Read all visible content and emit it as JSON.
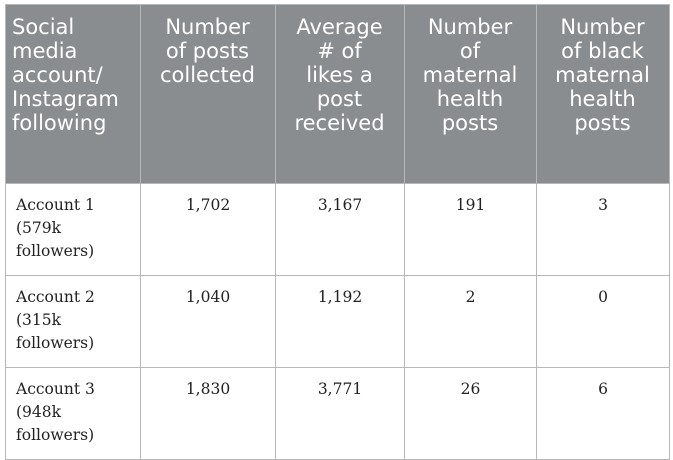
{
  "table": {
    "headers": [
      [
        "Social",
        "media",
        "account/",
        "Instagram",
        "following"
      ],
      [
        "Number",
        "of posts",
        "collected"
      ],
      [
        "Average",
        "# of",
        "likes a",
        "post",
        "received"
      ],
      [
        "Number",
        "of",
        "maternal",
        "health",
        "posts"
      ],
      [
        "Number",
        "of black",
        "maternal",
        "health",
        "posts"
      ]
    ],
    "rows": [
      {
        "account": [
          "Account 1",
          "(579k",
          "followers)"
        ],
        "posts_collected": "1,702",
        "avg_likes": "3,167",
        "maternal_posts": "191",
        "black_maternal_posts": "3"
      },
      {
        "account": [
          "Account 2",
          "(315k",
          "followers)"
        ],
        "posts_collected": "1,040",
        "avg_likes": "1,192",
        "maternal_posts": "2",
        "black_maternal_posts": "0"
      },
      {
        "account": [
          "Account 3",
          "(948k",
          "followers)"
        ],
        "posts_collected": "1,830",
        "avg_likes": "3,771",
        "maternal_posts": "26",
        "black_maternal_posts": "6"
      }
    ]
  },
  "colors": {
    "header_bg": "#8a8d8f",
    "header_text": "#ffffff",
    "border": "#b7b7b7",
    "body_text": "#222222"
  }
}
